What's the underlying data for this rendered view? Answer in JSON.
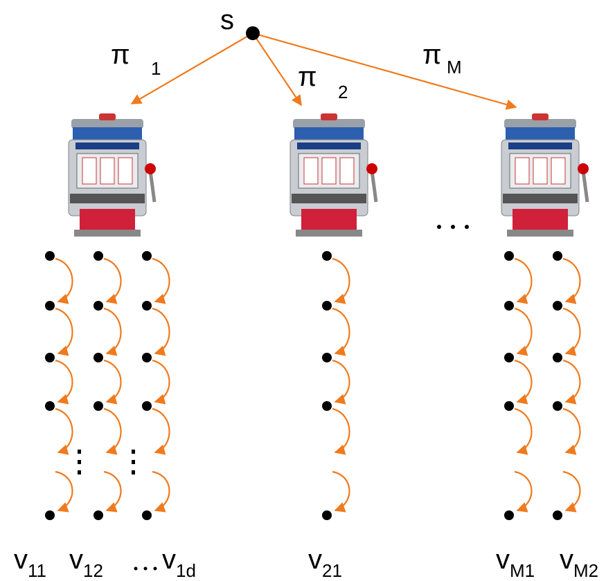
{
  "root": {
    "label": "s"
  },
  "arms": [
    {
      "label": "π",
      "subscript": "1"
    },
    {
      "label": "π",
      "subscript": "2"
    },
    {
      "label": "π",
      "subscript": "M"
    }
  ],
  "values": [
    {
      "label": "v",
      "subscript": "11"
    },
    {
      "label": "v",
      "subscript": "12"
    },
    {
      "label": "v",
      "subscript": "1d"
    },
    {
      "label": "v",
      "subscript": "21"
    },
    {
      "label": "v",
      "subscript": "M1"
    },
    {
      "label": "v",
      "subscript": "M2"
    }
  ]
}
